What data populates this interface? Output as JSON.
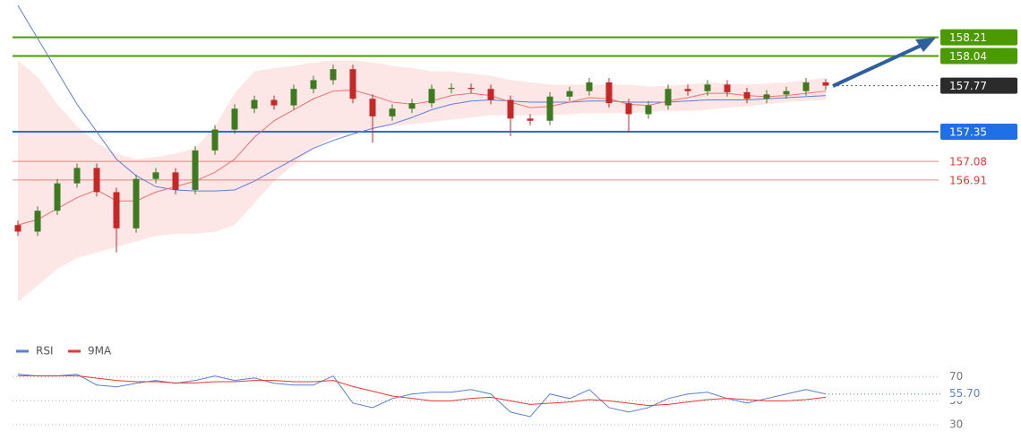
{
  "chart_data": [
    {
      "type": "candlestick",
      "ylim": [
        155.53,
        158.55
      ],
      "up_color": "#3d7a22",
      "down_color": "#c62828",
      "open": [
        156.5,
        156.44,
        156.63,
        156.88,
        157.02,
        156.8,
        156.47,
        156.92,
        156.98,
        156.82,
        157.18,
        157.37,
        157.56,
        157.64,
        157.59,
        157.74,
        157.82,
        157.92,
        157.65,
        157.49,
        157.56,
        157.61,
        157.74,
        157.75,
        157.74,
        157.64,
        157.47,
        157.45,
        157.67,
        157.72,
        157.8,
        157.61,
        157.51,
        157.59,
        157.74,
        157.72,
        157.78,
        157.71,
        157.65,
        157.69,
        157.72,
        157.8
      ],
      "high": [
        156.54,
        156.67,
        156.92,
        157.06,
        157.06,
        156.84,
        156.96,
        157.02,
        157.02,
        157.22,
        157.41,
        157.6,
        157.68,
        157.68,
        157.78,
        157.86,
        157.96,
        157.96,
        157.69,
        157.6,
        157.65,
        157.78,
        157.79,
        157.79,
        157.78,
        157.68,
        157.51,
        157.71,
        157.76,
        157.84,
        157.84,
        157.65,
        157.63,
        157.78,
        157.78,
        157.82,
        157.82,
        157.75,
        157.73,
        157.76,
        157.84,
        157.83
      ],
      "low": [
        156.4,
        156.4,
        156.59,
        156.84,
        156.76,
        156.25,
        156.43,
        156.88,
        156.78,
        156.78,
        157.14,
        157.33,
        157.52,
        157.55,
        157.55,
        157.7,
        157.78,
        157.61,
        157.25,
        157.45,
        157.52,
        157.57,
        157.7,
        157.7,
        157.6,
        157.31,
        157.41,
        157.41,
        157.63,
        157.68,
        157.57,
        157.34,
        157.47,
        157.55,
        157.68,
        157.68,
        157.67,
        157.61,
        157.61,
        157.65,
        157.68,
        157.73
      ],
      "close": [
        156.44,
        156.63,
        156.88,
        157.02,
        156.8,
        156.47,
        156.92,
        156.98,
        156.82,
        157.18,
        157.37,
        157.56,
        157.64,
        157.59,
        157.74,
        157.82,
        157.92,
        157.65,
        157.49,
        157.56,
        157.61,
        157.74,
        157.75,
        157.74,
        157.64,
        157.47,
        157.45,
        157.67,
        157.72,
        157.8,
        157.61,
        157.51,
        157.59,
        157.74,
        157.72,
        157.78,
        157.71,
        157.65,
        157.69,
        157.72,
        157.8,
        157.77
      ],
      "band": {
        "color": "#fde0e0",
        "upper": [
          158.0,
          157.85,
          157.6,
          157.4,
          157.25,
          157.15,
          157.1,
          157.12,
          157.15,
          157.2,
          157.4,
          157.7,
          157.9,
          157.93,
          157.95,
          157.98,
          158.0,
          158.0,
          157.98,
          157.95,
          157.93,
          157.9,
          157.9,
          157.88,
          157.86,
          157.82,
          157.8,
          157.78,
          157.78,
          157.78,
          157.78,
          157.78,
          157.76,
          157.77,
          157.78,
          157.8,
          157.79,
          157.78,
          157.79,
          157.8,
          157.82,
          157.84
        ],
        "lower": [
          155.8,
          155.95,
          156.1,
          156.2,
          156.25,
          156.3,
          156.35,
          156.4,
          156.42,
          156.42,
          156.44,
          156.5,
          156.7,
          156.9,
          157.05,
          157.2,
          157.3,
          157.35,
          157.38,
          157.4,
          157.42,
          157.44,
          157.46,
          157.48,
          157.5,
          157.5,
          157.5,
          157.5,
          157.51,
          157.52,
          157.52,
          157.52,
          157.53,
          157.54,
          157.54,
          157.55,
          157.57,
          157.58,
          157.6,
          157.62,
          157.63,
          157.64
        ]
      },
      "overlays": [
        {
          "color": "#5b7fd6",
          "values": [
            158.5,
            158.2,
            157.9,
            157.6,
            157.35,
            157.1,
            156.95,
            156.85,
            156.82,
            156.81,
            156.81,
            156.82,
            156.9,
            157.0,
            157.1,
            157.2,
            157.27,
            157.33,
            157.38,
            157.42,
            157.48,
            157.55,
            157.6,
            157.63,
            157.64,
            157.63,
            157.62,
            157.62,
            157.62,
            157.63,
            157.63,
            157.62,
            157.62,
            157.62,
            157.63,
            157.64,
            157.64,
            157.64,
            157.65,
            157.66,
            157.67,
            157.68
          ]
        },
        {
          "color": "#ee7070",
          "values": [
            156.5,
            156.55,
            156.65,
            156.75,
            156.82,
            156.72,
            156.72,
            156.8,
            156.85,
            156.9,
            156.98,
            157.1,
            157.3,
            157.45,
            157.55,
            157.65,
            157.72,
            157.73,
            157.68,
            157.62,
            157.6,
            157.63,
            157.68,
            157.7,
            157.68,
            157.62,
            157.57,
            157.58,
            157.62,
            157.66,
            157.65,
            157.6,
            157.59,
            157.63,
            157.66,
            157.7,
            157.7,
            157.68,
            157.67,
            157.68,
            157.7,
            157.72
          ]
        }
      ],
      "levels": [
        {
          "value": 158.21,
          "color": "#4a9a00",
          "style": "box"
        },
        {
          "value": 158.04,
          "color": "#4a9a00",
          "style": "box"
        },
        {
          "value": 157.77,
          "color": "#2b2b2b",
          "style": "dotted-box"
        },
        {
          "value": 157.35,
          "color": "#1e6fe8",
          "style": "box"
        },
        {
          "value": 157.08,
          "color": "#e53935",
          "style": "text"
        },
        {
          "value": 156.91,
          "color": "#e53935",
          "style": "text"
        }
      ]
    },
    {
      "type": "line",
      "ylim": [
        18,
        78
      ],
      "yticks": [
        70,
        50,
        30
      ],
      "series": [
        {
          "name": "RSI",
          "color": "#5b7fd6",
          "values": [
            72.3,
            70.8,
            70.8,
            72.3,
            63.2,
            61.7,
            64.7,
            67.0,
            64.7,
            67.0,
            70.8,
            67.0,
            69.2,
            64.7,
            63.2,
            63.2,
            70.8,
            48.1,
            44.3,
            51.9,
            55.7,
            57.2,
            57.2,
            59.4,
            55.7,
            40.6,
            36.8,
            55.7,
            51.9,
            59.4,
            44.3,
            40.6,
            44.3,
            51.9,
            55.7,
            57.2,
            51.9,
            48.1,
            51.9,
            55.7,
            59.4,
            55.7
          ]
        },
        {
          "name": "9MA",
          "color": "#e53935",
          "values": [
            71,
            71,
            71,
            71,
            69,
            67,
            66,
            66,
            65,
            65,
            66,
            66,
            67,
            67,
            66,
            66,
            67,
            62,
            58,
            54,
            52,
            50,
            50,
            52,
            53,
            50,
            47,
            48,
            49,
            51,
            50,
            48,
            46,
            47,
            49,
            51,
            52,
            51,
            50,
            50,
            51,
            53
          ]
        }
      ],
      "last": {
        "value": 55.7,
        "label": "55.70",
        "color": "#5b7fd6"
      }
    }
  ]
}
